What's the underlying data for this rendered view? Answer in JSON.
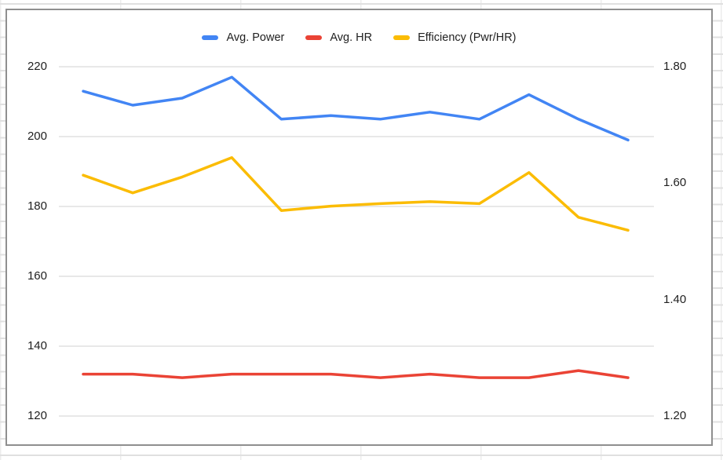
{
  "chart": {
    "legend_items": [
      {
        "label": "Avg. Power",
        "color": "#4285F4"
      },
      {
        "label": "Avg. HR",
        "color": "#EA4335"
      },
      {
        "label": "Efficiency (Pwr/HR)",
        "color": "#FBBC04"
      }
    ],
    "left_axis_ticks": [
      {
        "label": "220",
        "value": 220
      },
      {
        "label": "200",
        "value": 200
      },
      {
        "label": "180",
        "value": 180
      },
      {
        "label": "160",
        "value": 160
      },
      {
        "label": "140",
        "value": 140
      },
      {
        "label": "120",
        "value": 120
      }
    ],
    "right_axis_ticks": [
      {
        "label": "1.80",
        "value": 1.8
      },
      {
        "label": "1.60",
        "value": 1.6
      },
      {
        "label": "1.40",
        "value": 1.4
      },
      {
        "label": "1.20",
        "value": 1.2
      }
    ],
    "colors": {
      "grid": "#e0e0e0",
      "chart_border": "#8f8f8f",
      "axis_text": "#1f1f1f",
      "legend_text": "#212121"
    }
  },
  "chart_data": {
    "type": "line",
    "title": "",
    "legend_position": "top",
    "grid": "horizontal",
    "x_labels_visible": false,
    "num_points": 12,
    "left_axis": {
      "range": [
        120,
        220
      ],
      "ticks": [
        220,
        200,
        180,
        160,
        140,
        120
      ]
    },
    "right_axis": {
      "range": [
        1.2,
        1.8
      ],
      "ticks": [
        1.8,
        1.6,
        1.4,
        1.2
      ]
    },
    "series": [
      {
        "name": "Avg. Power",
        "axis": "left",
        "color": "#4285F4",
        "values": [
          213,
          209,
          211,
          217,
          205,
          206,
          205,
          207,
          205,
          212,
          205,
          199
        ]
      },
      {
        "name": "Avg. HR",
        "axis": "left",
        "color": "#EA4335",
        "values": [
          132,
          132,
          131,
          132,
          132,
          132,
          131,
          132,
          131,
          131,
          133,
          131
        ]
      },
      {
        "name": "Efficiency (Pwr/HR)",
        "axis": "right",
        "color": "#FBBC04",
        "values": [
          1.6136,
          1.5833,
          1.6107,
          1.6439,
          1.553,
          1.5606,
          1.5649,
          1.5682,
          1.5649,
          1.6183,
          1.5414,
          1.5191
        ]
      }
    ]
  }
}
